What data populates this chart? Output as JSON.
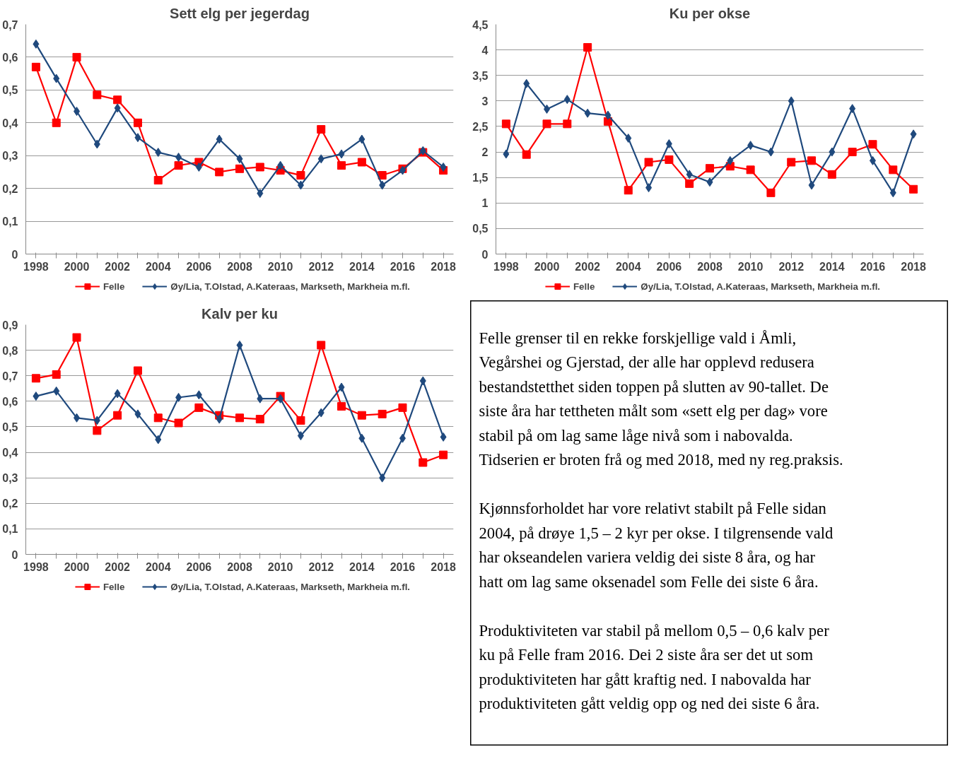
{
  "chart_data": [
    {
      "type": "line",
      "title": "Sett elg per jegerdag",
      "categories": [
        "1998",
        null,
        "2000",
        null,
        "2002",
        null,
        "2004",
        null,
        "2006",
        null,
        "2008",
        null,
        "2010",
        null,
        "2012",
        null,
        "2014",
        null,
        "2016",
        null,
        "2018"
      ],
      "ylim": [
        0,
        0.7
      ],
      "yticks": [
        0,
        {
          "value": 0.1,
          "label": "0,1"
        },
        {
          "value": 0.2,
          "label": "0,2"
        },
        {
          "value": 0.3,
          "label": "0,3"
        },
        {
          "value": 0.4,
          "label": "0,4"
        },
        {
          "value": 0.5,
          "label": "0,5"
        },
        {
          "value": 0.6,
          "label": "0,6"
        },
        {
          "value": 0.7,
          "label": "0,7"
        }
      ],
      "grid": "y",
      "legend": "bottom",
      "series": [
        {
          "name": "Felle",
          "color": "#ff0000",
          "marker": "square",
          "values": [
            0.57,
            0.4,
            0.6,
            0.485,
            0.47,
            0.4,
            0.225,
            0.27,
            0.28,
            0.25,
            0.26,
            0.265,
            0.255,
            0.24,
            0.38,
            0.27,
            0.28,
            0.24,
            0.26,
            0.31,
            0.255
          ]
        },
        {
          "name": "Øy/Lia, T.Olstad, A.Kateraas, Markseth, Markheia m.fl.",
          "color": "#1f497d",
          "marker": "diamond",
          "values": [
            0.64,
            0.535,
            0.435,
            0.335,
            0.445,
            0.355,
            0.31,
            0.295,
            0.265,
            0.35,
            0.29,
            0.185,
            0.27,
            0.21,
            0.29,
            0.305,
            0.35,
            0.21,
            0.255,
            0.315,
            0.265
          ]
        }
      ]
    },
    {
      "type": "line",
      "title": "Ku per okse",
      "categories": [
        "1998",
        null,
        "2000",
        null,
        "2002",
        null,
        "2004",
        null,
        "2006",
        null,
        "2008",
        null,
        "2010",
        null,
        "2012",
        null,
        "2014",
        null,
        "2016",
        null,
        "2018"
      ],
      "ylim": [
        0,
        4.5
      ],
      "yticks": [
        0,
        {
          "value": 0.5,
          "label": "0,5"
        },
        1,
        {
          "value": 1.5,
          "label": "1,5"
        },
        2,
        {
          "value": 2.5,
          "label": "2,5"
        },
        3,
        {
          "value": 3.5,
          "label": "3,5"
        },
        4,
        {
          "value": 4.5,
          "label": "4,5"
        }
      ],
      "grid": "y",
      "legend": "bottom",
      "series": [
        {
          "name": "Felle",
          "color": "#ff0000",
          "marker": "square",
          "values": [
            2.55,
            1.95,
            2.55,
            2.55,
            4.05,
            2.6,
            1.25,
            1.8,
            1.85,
            1.38,
            1.68,
            1.72,
            1.65,
            1.2,
            1.8,
            1.83,
            1.56,
            2.0,
            2.15,
            1.65,
            1.27
          ]
        },
        {
          "name": "Øy/Lia, T.Olstad, A.Kateraas, Markseth, Markheia m.fl.",
          "color": "#1f497d",
          "marker": "diamond",
          "values": [
            1.96,
            3.34,
            2.84,
            3.03,
            2.76,
            2.72,
            2.27,
            1.3,
            2.16,
            1.56,
            1.41,
            1.83,
            2.13,
            2.0,
            3.0,
            1.35,
            2.0,
            2.85,
            1.83,
            1.2,
            2.35
          ]
        }
      ]
    },
    {
      "type": "line",
      "title": "Kalv per ku",
      "categories": [
        "1998",
        null,
        "2000",
        null,
        "2002",
        null,
        "2004",
        null,
        "2006",
        null,
        "2008",
        null,
        "2010",
        null,
        "2012",
        null,
        "2014",
        null,
        "2016",
        null,
        "2018"
      ],
      "ylim": [
        0,
        0.9
      ],
      "yticks": [
        0,
        {
          "value": 0.1,
          "label": "0,1"
        },
        {
          "value": 0.2,
          "label": "0,2"
        },
        {
          "value": 0.3,
          "label": "0,3"
        },
        {
          "value": 0.4,
          "label": "0,4"
        },
        {
          "value": 0.5,
          "label": "0,5"
        },
        {
          "value": 0.6,
          "label": "0,6"
        },
        {
          "value": 0.7,
          "label": "0,7"
        },
        {
          "value": 0.8,
          "label": "0,8"
        },
        {
          "value": 0.9,
          "label": "0,9"
        }
      ],
      "grid": "y",
      "legend": "bottom",
      "series": [
        {
          "name": "Felle",
          "color": "#ff0000",
          "marker": "square",
          "values": [
            0.69,
            0.705,
            0.85,
            0.485,
            0.545,
            0.72,
            0.535,
            0.515,
            0.575,
            0.545,
            0.535,
            0.53,
            0.62,
            0.525,
            0.82,
            0.58,
            0.545,
            0.55,
            0.575,
            0.36,
            0.39
          ]
        },
        {
          "name": "Øy/Lia, T.Olstad, A.Kateraas, Markseth, Markheia m.fl.",
          "color": "#1f497d",
          "marker": "diamond",
          "values": [
            0.62,
            0.64,
            0.535,
            0.525,
            0.63,
            0.55,
            0.45,
            0.615,
            0.625,
            0.53,
            0.82,
            0.61,
            0.61,
            0.465,
            0.555,
            0.655,
            0.455,
            0.3,
            0.455,
            0.68,
            0.46
          ]
        }
      ]
    },
    {
      "type": "other",
      "annotations": [
        "Felle grenser til en rekke forskjellige vald i Åmli, Vegårshei og Gjerstad, der alle har opplevd redusera bestandstetthet siden toppen på slutten av 90-tallet. De siste åra har tettheten målt som «sett elg per dag» vore stabil på om lag same låge nivå som i nabovalda. Tidserien er broten frå og med 2018, med ny reg.praksis.",
        "Kjønnsforholdet har vore relativt stabilt på Felle sidan 2004, på drøye 1,5 – 2 kyr per okse. I tilgrensende vald har okseandelen variera veldig dei siste 8 åra, og har hatt om lag same oksenadel som Felle dei siste 6 åra.",
        "Produktiviteten var stabil på mellom 0,5 – 0,6 kalv per ku på Felle fram 2016. Dei 2 siste åra ser det ut som produktiviteten har gått kraftig ned. I nabovalda har produktiviteten gått veldig opp og ned dei siste 6 åra."
      ]
    }
  ]
}
